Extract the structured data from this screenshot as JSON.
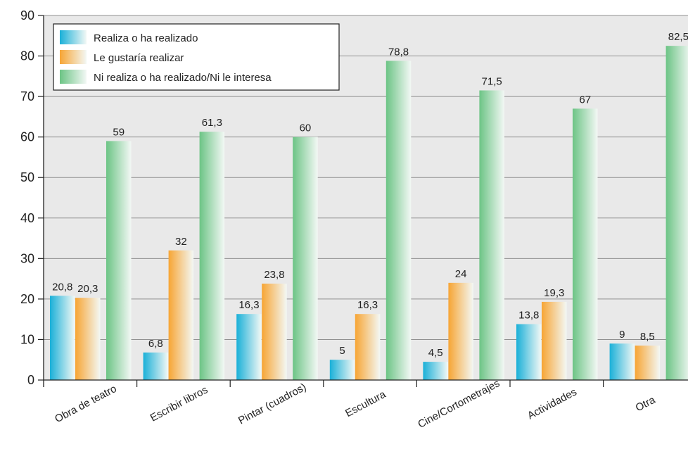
{
  "chart_data": {
    "type": "bar",
    "title": "",
    "xlabel": "",
    "ylabel": "",
    "ylim": [
      0,
      90
    ],
    "yticks": [
      0,
      10,
      20,
      30,
      40,
      50,
      60,
      70,
      80,
      90
    ],
    "grid": true,
    "legend_position": "top-left",
    "categories": [
      "Obra de teatro",
      "Escribir libros",
      "Pintar (cuadros)",
      "Escultura",
      "Cine/Cortometrajes",
      "Actividades",
      "Otra"
    ],
    "series": [
      {
        "name": "Realiza o ha realizado",
        "color": "#1ab0d8",
        "values": [
          20.8,
          6.8,
          16.3,
          5,
          4.5,
          13.8,
          9
        ],
        "labels": [
          "20,8",
          "6,8",
          "16,3",
          "5",
          "4,5",
          "13,8",
          "9"
        ]
      },
      {
        "name": "Le gustaría realizar",
        "color": "#f7a534",
        "values": [
          20.3,
          32,
          23.8,
          16.3,
          24,
          19.3,
          8.5
        ],
        "labels": [
          "20,3",
          "32",
          "23,8",
          "16,3",
          "24",
          "19,3",
          "8,5"
        ]
      },
      {
        "name": "Ni realiza o ha realizado/Ni le interesa",
        "color": "#6cc485",
        "values": [
          59,
          61.3,
          60,
          78.8,
          71.5,
          67,
          82.5
        ],
        "labels": [
          "59",
          "61,3",
          "60",
          "78,8",
          "71,5",
          "67",
          "82,5"
        ]
      }
    ]
  }
}
